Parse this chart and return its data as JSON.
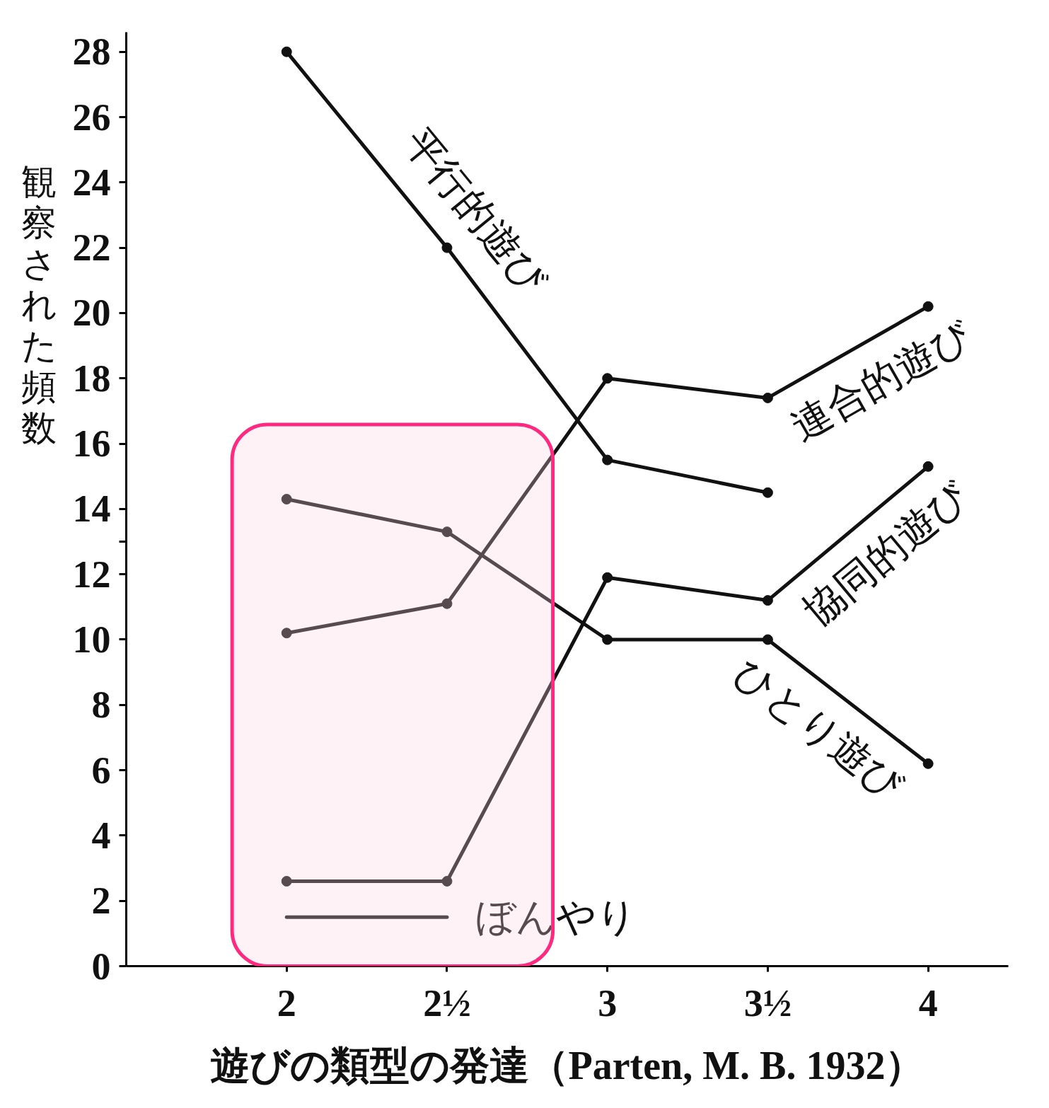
{
  "chart_data": {
    "type": "line",
    "xlabel": "遊びの類型の発達（Parten, M. B. 1932）",
    "ylabel": "観察された頻数",
    "x": [
      2,
      2.5,
      3,
      3.5,
      4
    ],
    "xlim": [
      1.5,
      4.25
    ],
    "xticks": [
      2,
      {
        "value": 2.5,
        "label": "2½"
      },
      3,
      {
        "value": 3.5,
        "label": "3½"
      },
      4
    ],
    "ylim": [
      0,
      28.6
    ],
    "yticks": [
      0,
      2,
      4,
      6,
      8,
      10,
      12,
      {
        "value": 13,
        "label": null
      },
      14,
      16,
      18,
      20,
      22,
      24,
      26,
      28
    ],
    "grid": false,
    "legend": false,
    "marker": "circle",
    "line_style": "solid",
    "series": [
      {
        "name": "平行的遊び",
        "color": "#111111",
        "values": [
          28,
          22,
          15.5,
          14.5,
          null
        ]
      },
      {
        "name": "連合的遊び",
        "color": "#111111",
        "values": [
          10.2,
          11.1,
          18,
          17.4,
          20.2
        ]
      },
      {
        "name": "協同的遊び",
        "color": "#111111",
        "values": [
          2.6,
          2.6,
          11.9,
          11.2,
          15.3
        ]
      },
      {
        "name": "ひとり遊び",
        "color": "#111111",
        "values": [
          14.3,
          13.3,
          10,
          10,
          6.2
        ]
      },
      {
        "name": "ぼんやり",
        "color": "#111111",
        "values": [
          1.5,
          1.5,
          null,
          null,
          null
        ],
        "marker": "none"
      }
    ],
    "bands": [
      {
        "axis": "x",
        "from": 1.83,
        "to": 2.83,
        "color": "#ff2a7f"
      }
    ]
  }
}
